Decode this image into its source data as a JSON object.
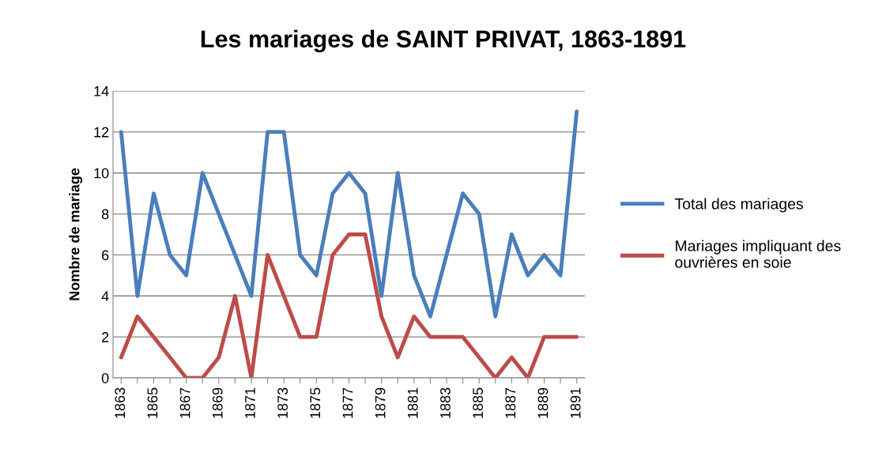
{
  "chart_data": {
    "type": "line",
    "title": "Les mariages de SAINT PRIVAT, 1863-1891",
    "ylabel": "Nombre de mariage",
    "categories": [
      "1863",
      null,
      "1865",
      null,
      "1867",
      null,
      "1869",
      null,
      "1871",
      null,
      "1873",
      null,
      "1875",
      null,
      "1877",
      null,
      "1879",
      null,
      "1881",
      null,
      "1883",
      null,
      "1885",
      null,
      "1887",
      null,
      "1889",
      null,
      "1891"
    ],
    "series": [
      {
        "name": "Total des mariages",
        "color": "#4a7ebb",
        "values": [
          12,
          4,
          9,
          6,
          5,
          10,
          8,
          6,
          4,
          12,
          12,
          6,
          5,
          9,
          10,
          9,
          4,
          10,
          5,
          3,
          6,
          9,
          8,
          3,
          7,
          5,
          6,
          5,
          13
        ]
      },
      {
        "name": "Mariages impliquant des\nouvrières en soie",
        "color": "#be4b48",
        "values": [
          1,
          3,
          2,
          1,
          0,
          0,
          1,
          4,
          0,
          6,
          4,
          2,
          2,
          6,
          7,
          7,
          3,
          1,
          3,
          2,
          2,
          2,
          1,
          0,
          1,
          0,
          2,
          2,
          2
        ]
      }
    ],
    "ylim": [
      0,
      14
    ],
    "yticks": [
      0,
      2,
      4,
      6,
      8,
      10,
      12,
      14
    ],
    "grid": "y",
    "legend": "right",
    "marker": "none",
    "line_style": "solid"
  }
}
